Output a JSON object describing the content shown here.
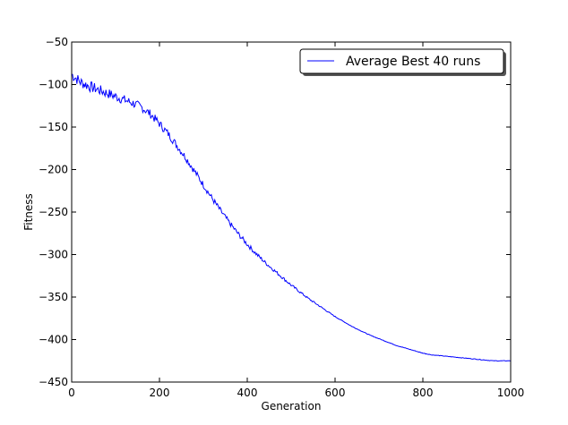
{
  "chart_data": {
    "type": "line",
    "title": "",
    "xlabel": "Generation",
    "ylabel": "Fitness",
    "xlim": [
      0,
      1000
    ],
    "ylim": [
      -450,
      -50
    ],
    "xticks": [
      0,
      200,
      400,
      600,
      800,
      1000
    ],
    "yticks": [
      -50,
      -100,
      -150,
      -200,
      -250,
      -300,
      -350,
      -400,
      -450
    ],
    "xtick_labels": [
      "0",
      "200",
      "400",
      "600",
      "800",
      "1000"
    ],
    "ytick_labels": [
      "−50",
      "−100",
      "−150",
      "−200",
      "−250",
      "−300",
      "−350",
      "−400",
      "−450"
    ],
    "grid": false,
    "legend_position": "top-right",
    "series": [
      {
        "name": "Average Best 40 runs",
        "color": "#0000ff",
        "x": [
          0,
          20,
          40,
          60,
          80,
          100,
          120,
          140,
          160,
          180,
          200,
          220,
          240,
          260,
          280,
          300,
          320,
          340,
          360,
          380,
          400,
          420,
          440,
          460,
          480,
          500,
          520,
          540,
          560,
          580,
          600,
          620,
          640,
          660,
          680,
          700,
          720,
          740,
          760,
          780,
          800,
          820,
          840,
          860,
          880,
          900,
          920,
          940,
          960,
          980,
          1000
        ],
        "values": [
          -88,
          -97,
          -102,
          -106,
          -110,
          -114,
          -118,
          -122,
          -127,
          -135,
          -146,
          -158,
          -172,
          -186,
          -202,
          -218,
          -234,
          -249,
          -263,
          -276,
          -288,
          -299,
          -309,
          -318,
          -327,
          -336,
          -344,
          -352,
          -359,
          -366,
          -373,
          -379,
          -385,
          -390,
          -395,
          -399,
          -403,
          -407,
          -410,
          -413,
          -416,
          -418,
          -419,
          -420,
          -421,
          -422,
          -423,
          -424,
          -425,
          -425,
          -425
        ]
      }
    ]
  }
}
